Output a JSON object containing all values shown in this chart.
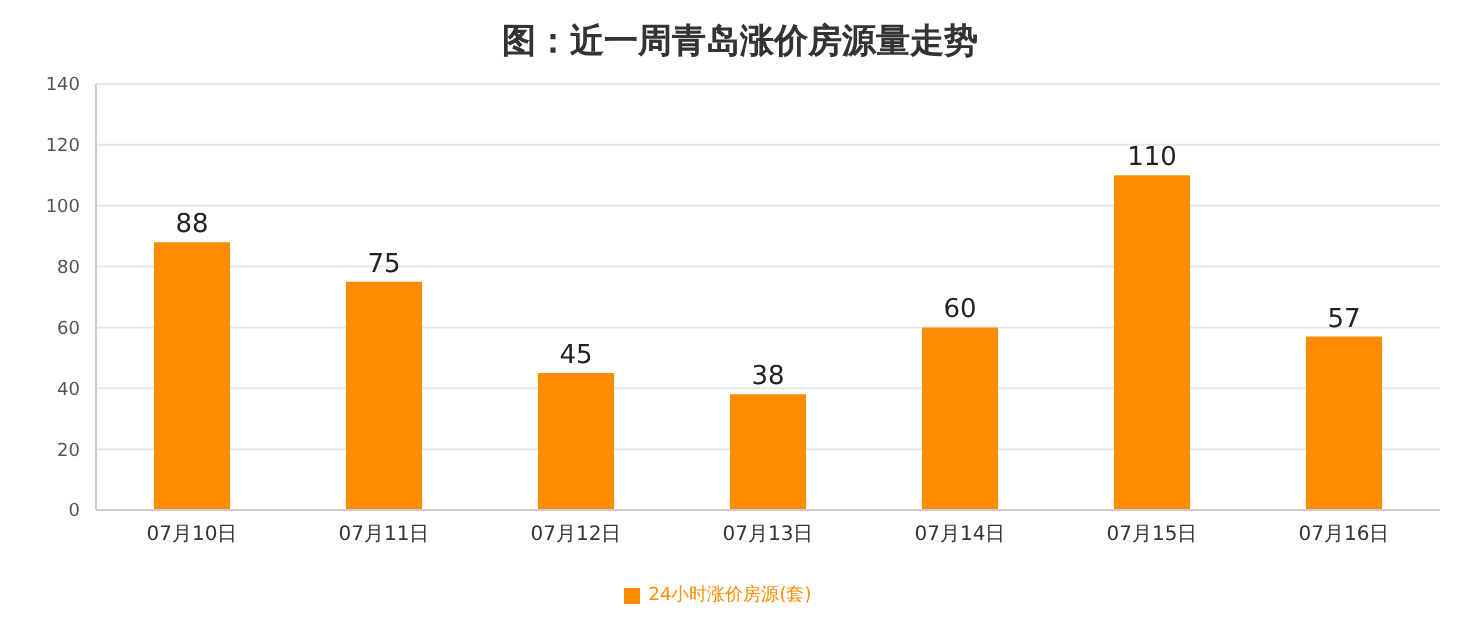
{
  "chart_data": {
    "type": "bar",
    "title": "图：近一周青岛涨价房源量走势",
    "categories": [
      "07月10日",
      "07月11日",
      "07月12日",
      "07月13日",
      "07月14日",
      "07月15日",
      "07月16日"
    ],
    "series": [
      {
        "name": "24小时涨价房源(套)",
        "color": "#ff8c00",
        "values": [
          88,
          75,
          45,
          38,
          60,
          110,
          57
        ]
      }
    ],
    "ylim": [
      0,
      140
    ],
    "yticks": [
      0,
      20,
      40,
      60,
      80,
      100,
      120,
      140
    ],
    "grid": "y",
    "legend": "bottom",
    "data_labels": true
  }
}
